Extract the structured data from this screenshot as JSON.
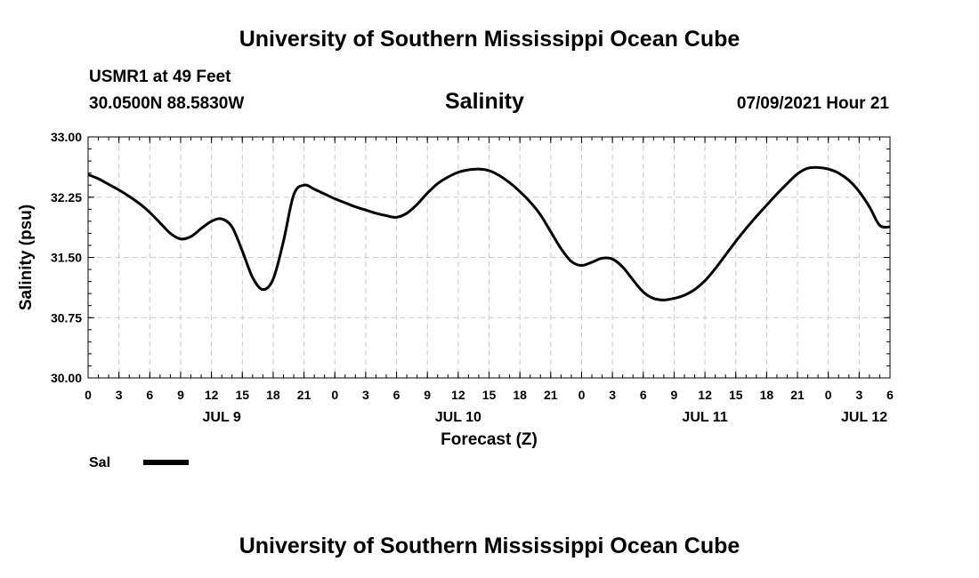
{
  "header": {
    "title": "University of Southern Mississippi Ocean Cube",
    "station": "USMR1 at 49 Feet",
    "coords": "30.0500N  88.5830W",
    "variable": "Salinity",
    "datetime": "07/09/2021 Hour 21"
  },
  "footer": {
    "title": "University of Southern Mississippi Ocean Cube"
  },
  "chart_data": {
    "type": "line",
    "title": "Salinity",
    "xlabel": "Forecast (Z)",
    "ylabel": "Salinity (psu)",
    "ylim": [
      30.0,
      33.0
    ],
    "xlim_hours": [
      0,
      78
    ],
    "x_origin": "JUL 9 00Z",
    "y_ticks": [
      "30.00",
      "30.75",
      "31.50",
      "32.25",
      "33.00"
    ],
    "x_ticks": [
      {
        "h": 0,
        "label": "0"
      },
      {
        "h": 3,
        "label": "3"
      },
      {
        "h": 6,
        "label": "6"
      },
      {
        "h": 9,
        "label": "9"
      },
      {
        "h": 12,
        "label": "12"
      },
      {
        "h": 15,
        "label": "15"
      },
      {
        "h": 18,
        "label": "18"
      },
      {
        "h": 21,
        "label": "21"
      },
      {
        "h": 24,
        "label": "0"
      },
      {
        "h": 27,
        "label": "3"
      },
      {
        "h": 30,
        "label": "6"
      },
      {
        "h": 33,
        "label": "9"
      },
      {
        "h": 36,
        "label": "12"
      },
      {
        "h": 39,
        "label": "15"
      },
      {
        "h": 42,
        "label": "18"
      },
      {
        "h": 45,
        "label": "21"
      },
      {
        "h": 48,
        "label": "0"
      },
      {
        "h": 51,
        "label": "3"
      },
      {
        "h": 54,
        "label": "6"
      },
      {
        "h": 57,
        "label": "9"
      },
      {
        "h": 60,
        "label": "12"
      },
      {
        "h": 63,
        "label": "15"
      },
      {
        "h": 66,
        "label": "18"
      },
      {
        "h": 69,
        "label": "21"
      },
      {
        "h": 72,
        "label": "0"
      },
      {
        "h": 75,
        "label": "3"
      },
      {
        "h": 78,
        "label": "6"
      }
    ],
    "date_labels": [
      {
        "h": 13,
        "label": "JUL 9"
      },
      {
        "h": 36,
        "label": "JUL 10"
      },
      {
        "h": 60,
        "label": "JUL 11"
      },
      {
        "h": 75.5,
        "label": "JUL 12"
      }
    ],
    "grid": true,
    "legend": [
      {
        "name": "Sal",
        "color": "#000000"
      }
    ],
    "series": [
      {
        "name": "Sal",
        "color": "#000000",
        "x": [
          0,
          1,
          2,
          3,
          4,
          5,
          6,
          7,
          8,
          9,
          10,
          11,
          12,
          13,
          14,
          15,
          16,
          17,
          18,
          19,
          20,
          21,
          22,
          23,
          24,
          25,
          26,
          27,
          28,
          29,
          30,
          31,
          32,
          33,
          34,
          35,
          36,
          37,
          38,
          39,
          40,
          41,
          42,
          43,
          44,
          45,
          46,
          47,
          48,
          49,
          50,
          51,
          52,
          53,
          54,
          55,
          56,
          57,
          58,
          59,
          60,
          61,
          62,
          63,
          64,
          65,
          66,
          67,
          68,
          69,
          70,
          71,
          72,
          73,
          74,
          75,
          76,
          77,
          78
        ],
        "values": [
          32.53,
          32.48,
          32.41,
          32.34,
          32.26,
          32.17,
          32.06,
          31.93,
          31.8,
          31.73,
          31.76,
          31.86,
          31.95,
          31.98,
          31.88,
          31.58,
          31.25,
          31.1,
          31.23,
          31.7,
          32.28,
          32.4,
          32.35,
          32.29,
          32.23,
          32.18,
          32.13,
          32.09,
          32.05,
          32.02,
          32.0,
          32.05,
          32.16,
          32.3,
          32.42,
          32.5,
          32.56,
          32.59,
          32.6,
          32.58,
          32.52,
          32.43,
          32.32,
          32.19,
          32.03,
          31.82,
          31.61,
          31.45,
          31.4,
          31.44,
          31.49,
          31.48,
          31.38,
          31.22,
          31.07,
          30.99,
          30.97,
          30.99,
          31.03,
          31.1,
          31.21,
          31.36,
          31.53,
          31.7,
          31.86,
          32.01,
          32.15,
          32.29,
          32.42,
          32.54,
          32.61,
          32.62,
          32.6,
          32.55,
          32.46,
          32.32,
          32.13,
          31.9,
          31.88
        ]
      }
    ]
  }
}
